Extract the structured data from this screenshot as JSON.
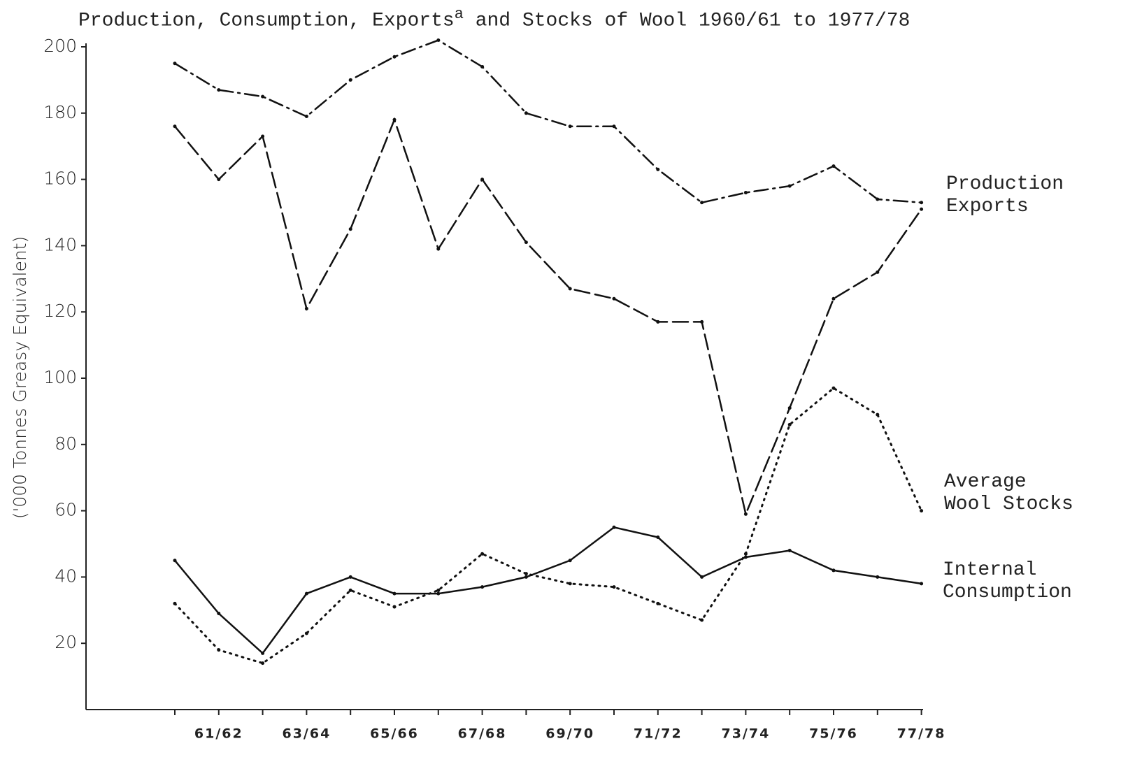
{
  "chart_data": {
    "type": "line",
    "title": "Production, Consumption, Exports",
    "title_marker": "a",
    "title_end": " and Stocks of Wool 1960/61 to 1977/78",
    "y_label": "('000 Tonnes Greasy Equivalent)",
    "categories": [
      null,
      "61/62",
      null,
      "63/64",
      null,
      "65/66",
      null,
      "67/68",
      null,
      "69/70",
      null,
      "71/72",
      null,
      "73/74",
      null,
      "75/76",
      null,
      "77/78"
    ],
    "ylim": [
      0,
      200
    ],
    "yticks": [
      20,
      40,
      60,
      80,
      100,
      120,
      140,
      160,
      180,
      200
    ],
    "series": [
      {
        "name": "Production",
        "color": "#111111",
        "style": "dashdot",
        "values": [
          195,
          187,
          185,
          179,
          190,
          197,
          202,
          194,
          180,
          176,
          176,
          163,
          153,
          156,
          158,
          164,
          154,
          153
        ]
      },
      {
        "name": "Exports",
        "color": "#111111",
        "style": "dashed",
        "values": [
          176,
          160,
          173,
          121,
          145,
          178,
          139,
          160,
          141,
          127,
          124,
          117,
          117,
          59,
          91,
          124,
          132,
          151
        ]
      },
      {
        "name": "Average Wool Stocks",
        "color": "#111111",
        "style": "dotted",
        "values": [
          32,
          18,
          14,
          23,
          36,
          31,
          36,
          47,
          41,
          38,
          37,
          32,
          27,
          47,
          86,
          97,
          89,
          60
        ]
      },
      {
        "name": "Internal Consumption",
        "color": "#111111",
        "style": "solid",
        "values": [
          45,
          29,
          17,
          35,
          40,
          35,
          35,
          37,
          40,
          45,
          55,
          52,
          40,
          46,
          48,
          42,
          40,
          38
        ]
      }
    ]
  }
}
